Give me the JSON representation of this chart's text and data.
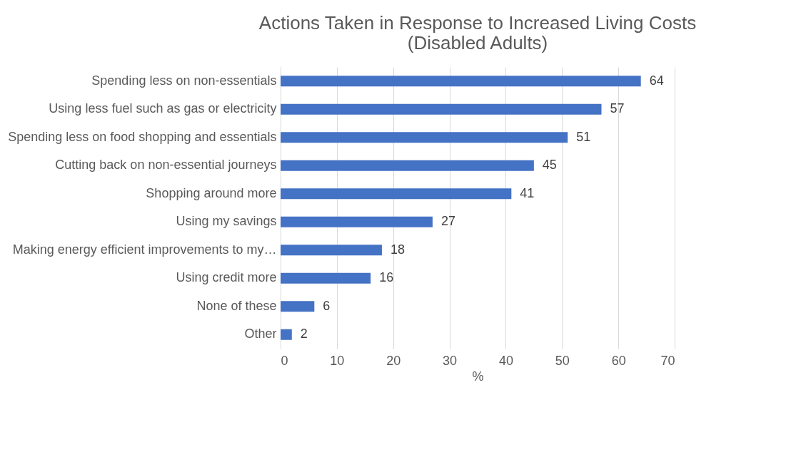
{
  "chart_data": {
    "type": "bar",
    "orientation": "horizontal",
    "title": "Actions Taken in Response to Increased Living Costs\n(Disabled Adults)",
    "xlabel": "%",
    "categories": [
      "Spending less on non-essentials",
      "Using less fuel such as gas or electricity ",
      "Spending less on food shopping and essentials",
      "Cutting back on non-essential journeys",
      "Shopping around more",
      "Using my savings",
      "Making energy efficient improvements to my…",
      "Using credit more",
      "None of these",
      "Other"
    ],
    "values": [
      64,
      57,
      51,
      45,
      41,
      27,
      18,
      16,
      6,
      2
    ],
    "color": "#4472c4",
    "xlim": [
      0,
      70
    ],
    "xticks": [
      0,
      10,
      20,
      30,
      40,
      50,
      60,
      70
    ],
    "grid": "x",
    "data_labels": true
  }
}
